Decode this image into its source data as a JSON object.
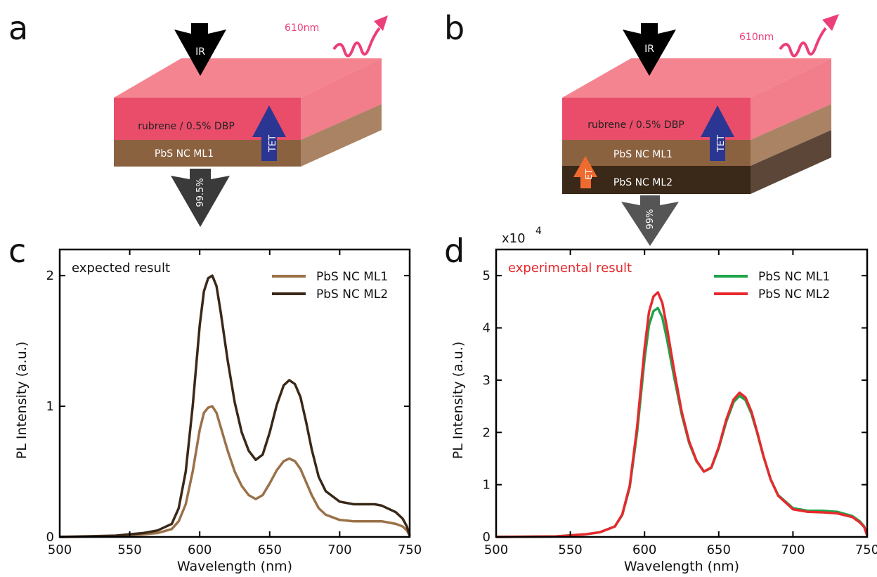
{
  "figure": {
    "panels": {
      "a": {
        "letter": "a",
        "top_label": "rubrene / 0.5% DBP",
        "bottom_label": "PbS NC ML1",
        "ir_label": "IR",
        "emission_label": "610nm",
        "tet_label": "TET",
        "transmission_label": "99.5%"
      },
      "b": {
        "letter": "b",
        "top_label": "rubrene / 0.5% DBP",
        "mid_label": "PbS NC ML1",
        "bottom_label": "PbS NC ML2",
        "ir_label": "IR",
        "emission_label": "610nm",
        "tet_label": "TET",
        "et_label": "ET",
        "transmission_label": "99%"
      },
      "c": {
        "letter": "c"
      },
      "d": {
        "letter": "d"
      }
    },
    "colors": {
      "rubrene": "#ea4d6a",
      "ml1": "#8b6240",
      "ml2": "#3a2818",
      "tet_arrow": "#2b3592",
      "et_arrow": "#ee6a2f",
      "emission": "#ec3f77"
    }
  },
  "chart_data": [
    {
      "type": "line",
      "annotation": "expected result",
      "xlabel": "Wavelength (nm)",
      "ylabel": "PL Intensity (a.u.)",
      "xlim": [
        500,
        750
      ],
      "ylim": [
        0,
        2.2
      ],
      "xticks": [
        "500",
        "550",
        "600",
        "650",
        "700",
        "750"
      ],
      "yticks": [
        "0",
        "1",
        "2"
      ],
      "ytick_values": [
        0,
        1,
        2
      ],
      "legend_position": "top-right",
      "x": [
        500,
        540,
        560,
        570,
        580,
        585,
        590,
        595,
        600,
        603,
        606,
        609,
        612,
        615,
        620,
        625,
        630,
        635,
        640,
        645,
        650,
        655,
        660,
        664,
        668,
        672,
        676,
        680,
        685,
        690,
        700,
        710,
        720,
        725,
        730,
        740,
        745,
        748,
        750
      ],
      "series": [
        {
          "name": "PbS NC ML1",
          "color": "#9a7148",
          "values": [
            0,
            0.005,
            0.02,
            0.03,
            0.06,
            0.12,
            0.25,
            0.5,
            0.82,
            0.95,
            0.99,
            1.0,
            0.95,
            0.84,
            0.66,
            0.5,
            0.39,
            0.32,
            0.29,
            0.32,
            0.41,
            0.51,
            0.58,
            0.6,
            0.58,
            0.52,
            0.42,
            0.32,
            0.22,
            0.17,
            0.13,
            0.12,
            0.12,
            0.12,
            0.12,
            0.1,
            0.08,
            0.05,
            0.01
          ]
        },
        {
          "name": "PbS NC ML2",
          "color": "#3a2818",
          "values": [
            0,
            0.01,
            0.03,
            0.05,
            0.1,
            0.22,
            0.5,
            1.0,
            1.62,
            1.88,
            1.98,
            2.0,
            1.92,
            1.72,
            1.35,
            1.03,
            0.8,
            0.66,
            0.59,
            0.63,
            0.8,
            1.01,
            1.16,
            1.2,
            1.17,
            1.07,
            0.88,
            0.67,
            0.46,
            0.35,
            0.27,
            0.25,
            0.25,
            0.25,
            0.24,
            0.19,
            0.14,
            0.08,
            0.01
          ]
        }
      ]
    },
    {
      "type": "line",
      "annotation": "experimental result",
      "multiplier": "x10",
      "multiplier_exp": "4",
      "xlabel": "Wavelength (nm)",
      "ylabel": "PL Intensity (a.u.)",
      "xlim": [
        500,
        750
      ],
      "ylim": [
        0,
        5.5
      ],
      "xticks": [
        "500",
        "550",
        "600",
        "650",
        "700",
        "750"
      ],
      "yticks": [
        "0",
        "1",
        "2",
        "3",
        "4",
        "5"
      ],
      "ytick_values": [
        0,
        1,
        2,
        3,
        4,
        5
      ],
      "legend_position": "top-right",
      "x": [
        500,
        540,
        560,
        570,
        580,
        585,
        590,
        595,
        600,
        603,
        606,
        609,
        612,
        615,
        620,
        625,
        630,
        635,
        640,
        645,
        650,
        655,
        660,
        664,
        668,
        672,
        676,
        680,
        685,
        690,
        700,
        710,
        720,
        725,
        730,
        740,
        745,
        748,
        750
      ],
      "series": [
        {
          "name": "PbS NC ML1",
          "color": "#1fa44a",
          "values": [
            0,
            0.01,
            0.05,
            0.09,
            0.2,
            0.42,
            0.95,
            2.0,
            3.4,
            4.05,
            4.32,
            4.38,
            4.2,
            3.8,
            3.05,
            2.35,
            1.8,
            1.45,
            1.25,
            1.32,
            1.7,
            2.2,
            2.58,
            2.7,
            2.62,
            2.36,
            1.98,
            1.55,
            1.1,
            0.8,
            0.55,
            0.5,
            0.5,
            0.49,
            0.48,
            0.4,
            0.3,
            0.2,
            0.03
          ]
        },
        {
          "name": "PbS NC ML2",
          "color": "#e62a2e",
          "values": [
            0,
            0.01,
            0.05,
            0.09,
            0.2,
            0.43,
            0.98,
            2.1,
            3.6,
            4.3,
            4.6,
            4.68,
            4.48,
            4.02,
            3.18,
            2.4,
            1.83,
            1.46,
            1.25,
            1.33,
            1.72,
            2.24,
            2.63,
            2.76,
            2.67,
            2.4,
            2.0,
            1.56,
            1.1,
            0.79,
            0.53,
            0.48,
            0.47,
            0.46,
            0.45,
            0.38,
            0.28,
            0.19,
            0.03
          ]
        }
      ]
    }
  ]
}
